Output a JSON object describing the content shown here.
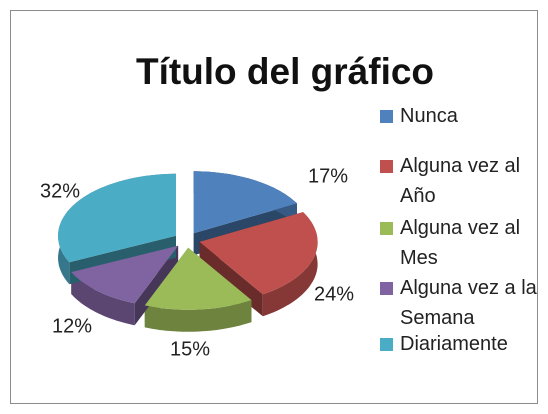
{
  "chart_data": {
    "type": "pie3d",
    "title": "Título del gráfico",
    "categories": [
      "Nunca",
      "Alguna vez al Año",
      "Alguna vez al Mes",
      "Alguna vez a la Semana",
      "Diariamente"
    ],
    "values": [
      17,
      24,
      15,
      12,
      32
    ],
    "value_labels": [
      "17%",
      "24%",
      "15%",
      "12%",
      "32%"
    ],
    "colors": [
      "#4f81bd",
      "#c0504d",
      "#9bbb59",
      "#8064a2",
      "#4bacc6"
    ],
    "legend": "right"
  }
}
